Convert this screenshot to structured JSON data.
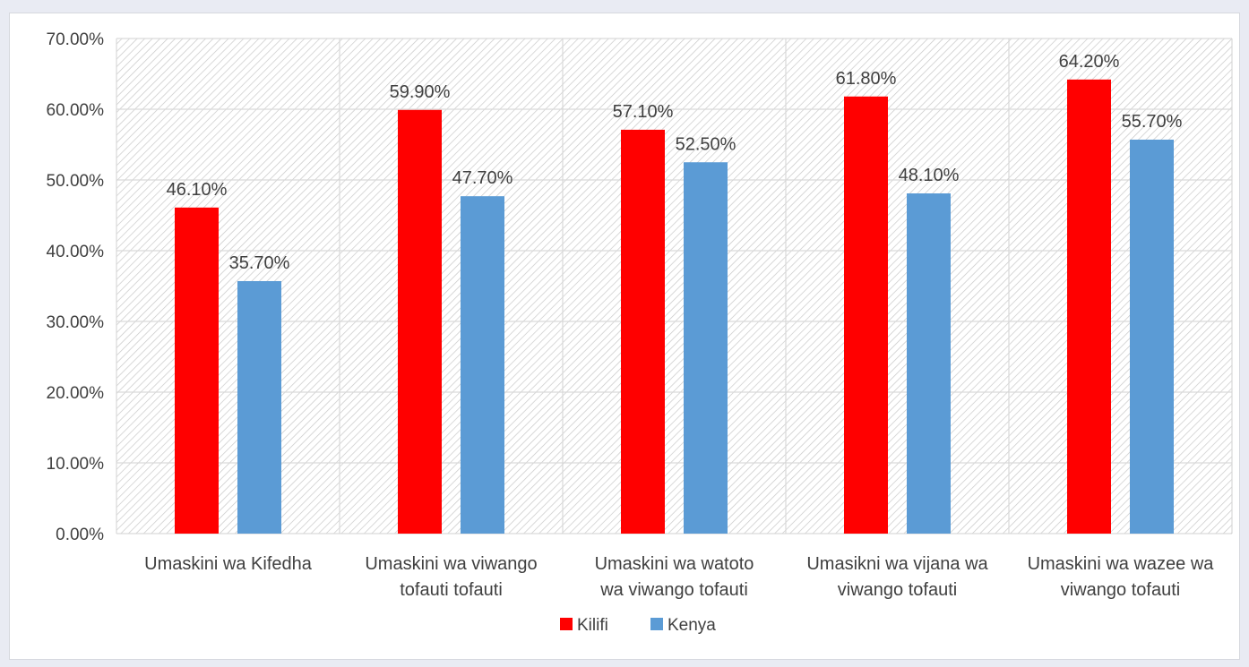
{
  "chart_data": {
    "type": "bar",
    "title": "",
    "xlabel": "",
    "ylabel": "",
    "ylim": [
      0,
      0.7
    ],
    "y_ticks": [
      0,
      0.1,
      0.2,
      0.3,
      0.4,
      0.5,
      0.6,
      0.7
    ],
    "y_tick_labels": [
      "0.00%",
      "10.00%",
      "20.00%",
      "30.00%",
      "40.00%",
      "50.00%",
      "60.00%",
      "70.00%"
    ],
    "categories": [
      [
        "Umaskini wa Kifedha"
      ],
      [
        "Umaskini wa viwango",
        "tofauti tofauti"
      ],
      [
        "Umaskini wa watoto",
        "wa viwango tofauti"
      ],
      [
        "Umasikni wa vijana wa",
        "viwango tofauti"
      ],
      [
        "Umaskini wa wazee wa",
        "viwango tofauti"
      ]
    ],
    "series": [
      {
        "name": "Kilifi",
        "color": "#ff0000",
        "values": [
          0.461,
          0.599,
          0.571,
          0.618,
          0.642
        ],
        "labels": [
          "46.10%",
          "59.90%",
          "57.10%",
          "61.80%",
          "64.20%"
        ]
      },
      {
        "name": "Kenya",
        "color": "#5b9bd5",
        "values": [
          0.357,
          0.477,
          0.525,
          0.481,
          0.557
        ],
        "labels": [
          "35.70%",
          "47.70%",
          "52.50%",
          "48.10%",
          "55.70%"
        ]
      }
    ],
    "grid": true,
    "legend": "bottom"
  }
}
